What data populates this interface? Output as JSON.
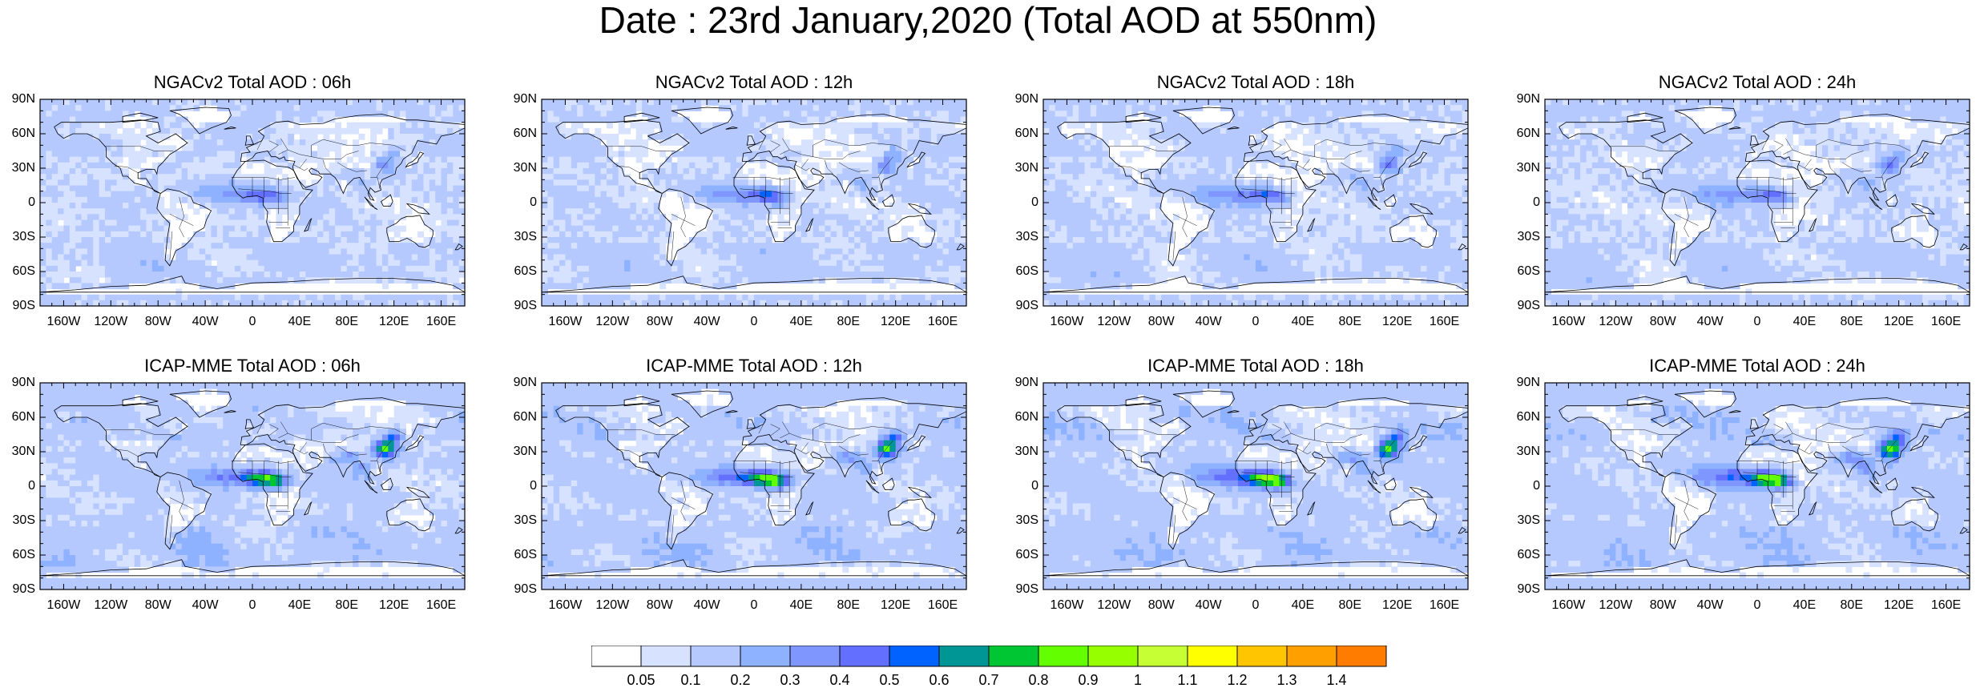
{
  "title": "Date : 23rd January,2020 (Total AOD at 550nm)",
  "panels": [
    {
      "title": "NGACv2 Total AOD : 06h",
      "model": "NGACv2",
      "hour": "06h",
      "intensity": 0.55
    },
    {
      "title": "NGACv2 Total AOD : 12h",
      "model": "NGACv2",
      "hour": "12h",
      "intensity": 0.58
    },
    {
      "title": "NGACv2 Total AOD : 18h",
      "model": "NGACv2",
      "hour": "18h",
      "intensity": 0.6
    },
    {
      "title": "NGACv2 Total AOD : 24h",
      "model": "NGACv2",
      "hour": "24h",
      "intensity": 0.6
    },
    {
      "title": "ICAP-MME Total AOD : 06h",
      "model": "ICAP-MME",
      "hour": "06h",
      "intensity": 1.0
    },
    {
      "title": "ICAP-MME Total AOD : 12h",
      "model": "ICAP-MME",
      "hour": "12h",
      "intensity": 1.02
    },
    {
      "title": "ICAP-MME Total AOD : 18h",
      "model": "ICAP-MME",
      "hour": "18h",
      "intensity": 1.05
    },
    {
      "title": "ICAP-MME Total AOD : 24h",
      "model": "ICAP-MME",
      "hour": "24h",
      "intensity": 1.05
    }
  ],
  "lat_labels": [
    "90N",
    "60N",
    "30N",
    "0",
    "30S",
    "60S",
    "90S"
  ],
  "lon_labels": [
    "160W",
    "120W",
    "80W",
    "40W",
    "0",
    "40E",
    "80E",
    "120E",
    "160E"
  ],
  "lon_values": [
    -160,
    -120,
    -80,
    -40,
    0,
    40,
    80,
    120,
    160
  ],
  "colorbar": {
    "labels": [
      "0.05",
      "0.1",
      "0.2",
      "0.3",
      "0.4",
      "0.5",
      "0.6",
      "0.7",
      "0.8",
      "0.9",
      "1",
      "1.1",
      "1.2",
      "1.3",
      "1.4"
    ],
    "colors": [
      "#ffffff",
      "#d6e2ff",
      "#b5c9ff",
      "#8eb2ff",
      "#7f96ff",
      "#6370ff",
      "#0063ff",
      "#009696",
      "#00c633",
      "#63ff00",
      "#96ff00",
      "#c6ff33",
      "#ffff00",
      "#ffc600",
      "#ffa000",
      "#ff7c00",
      "#ff1900"
    ]
  }
}
